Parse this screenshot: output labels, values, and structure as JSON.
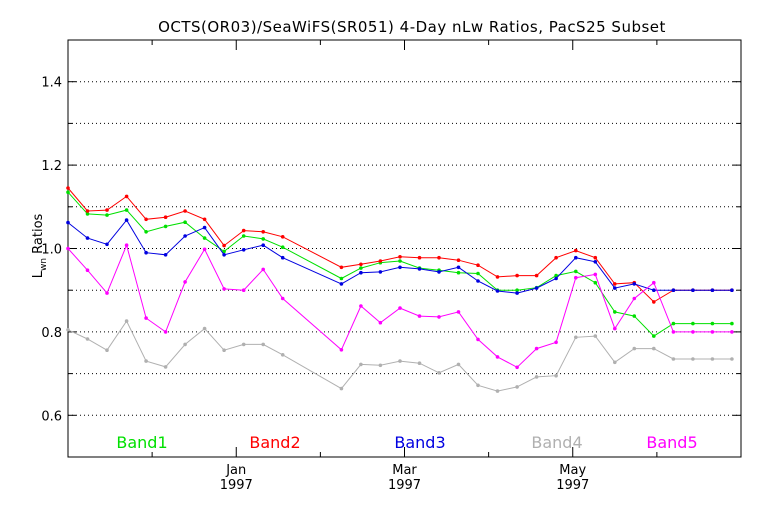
{
  "chart_data": {
    "type": "line",
    "title": "OCTS(OR03)/SeaWiFS(SR051) 4-Day nLw Ratios, PacS25 Subset",
    "ylabel_main": "L",
    "ylabel_sub": "wn",
    "ylabel_rest": " Ratios",
    "ylim": [
      0.5,
      1.5
    ],
    "xlim": [
      0,
      4.0
    ],
    "y_ticks": [
      0.6,
      0.8,
      1.0,
      1.2,
      1.4
    ],
    "y_tick_labels": [
      "0.6",
      "0.8",
      "1.0",
      "1.2",
      "1.4"
    ],
    "y_gridlines": [
      0.6,
      0.7,
      0.8,
      0.9,
      1.0,
      1.1,
      1.2,
      1.3,
      1.4
    ],
    "x_ticks": [
      {
        "x": 1.0,
        "month": "Jan",
        "year": "1997"
      },
      {
        "x": 2.0,
        "month": "Mar",
        "year": "1997"
      },
      {
        "x": 3.0,
        "month": "May",
        "year": "1997"
      }
    ],
    "x_minor_ticks": [
      0.5,
      1.5,
      2.5,
      3.5
    ],
    "x": [
      0.0,
      0.116,
      0.232,
      0.348,
      0.464,
      0.58,
      0.696,
      0.812,
      0.928,
      1.044,
      1.16,
      1.276,
      1.625,
      1.741,
      1.857,
      1.973,
      2.089,
      2.205,
      2.321,
      2.437,
      2.553,
      2.669,
      2.785,
      2.901,
      3.018,
      3.134,
      3.25,
      3.366,
      3.482,
      3.598,
      3.714,
      3.83,
      3.946
    ],
    "series": [
      {
        "name": "Band1",
        "color": "#00e000",
        "values": [
          1.135,
          1.083,
          1.08,
          1.092,
          1.04,
          1.053,
          1.063,
          1.025,
          0.993,
          1.03,
          1.023,
          1.003,
          0.928,
          0.953,
          0.966,
          0.97,
          0.953,
          0.948,
          0.942,
          0.94,
          0.9,
          0.9,
          0.906,
          0.935,
          0.945,
          0.918,
          0.848,
          0.838,
          0.79,
          0.82,
          0.82,
          0.82,
          0.82
        ]
      },
      {
        "name": "Band2",
        "color": "#ff0000",
        "values": [
          1.145,
          1.09,
          1.092,
          1.125,
          1.07,
          1.075,
          1.09,
          1.07,
          1.007,
          1.043,
          1.04,
          1.028,
          0.955,
          0.962,
          0.97,
          0.98,
          0.978,
          0.978,
          0.972,
          0.96,
          0.932,
          0.935,
          0.935,
          0.978,
          0.995,
          0.978,
          0.915,
          0.918,
          0.872,
          0.9,
          0.9,
          0.9,
          0.9
        ]
      },
      {
        "name": "Band3",
        "color": "#0000e0",
        "values": [
          1.062,
          1.025,
          1.01,
          1.068,
          0.99,
          0.985,
          1.03,
          1.05,
          0.985,
          0.997,
          1.008,
          0.978,
          0.915,
          0.942,
          0.944,
          0.955,
          0.951,
          0.944,
          0.955,
          0.922,
          0.898,
          0.893,
          0.905,
          0.928,
          0.978,
          0.968,
          0.905,
          0.915,
          0.9,
          0.9,
          0.9,
          0.9,
          0.9
        ]
      },
      {
        "name": "Band4",
        "color": "#b0b0b0",
        "values": [
          0.805,
          0.783,
          0.756,
          0.826,
          0.73,
          0.716,
          0.77,
          0.808,
          0.756,
          0.77,
          0.77,
          0.745,
          0.664,
          0.722,
          0.72,
          0.73,
          0.725,
          0.702,
          0.722,
          0.672,
          0.658,
          0.668,
          0.692,
          0.695,
          0.787,
          0.79,
          0.727,
          0.76,
          0.76,
          0.735,
          0.735,
          0.735,
          0.735
        ]
      },
      {
        "name": "Band5",
        "color": "#ff00ff",
        "values": [
          1.0,
          0.948,
          0.893,
          1.008,
          0.833,
          0.8,
          0.92,
          0.998,
          0.903,
          0.9,
          0.95,
          0.88,
          0.757,
          0.862,
          0.822,
          0.857,
          0.838,
          0.836,
          0.848,
          0.782,
          0.74,
          0.715,
          0.76,
          0.775,
          0.93,
          0.938,
          0.808,
          0.88,
          0.918,
          0.8,
          0.8,
          0.8,
          0.8
        ]
      }
    ],
    "legend": [
      "Band1",
      "Band2",
      "Band3",
      "Band4",
      "Band5"
    ],
    "legend_placement": "bottom-inside",
    "grid": true,
    "grid_style": "dotted"
  }
}
